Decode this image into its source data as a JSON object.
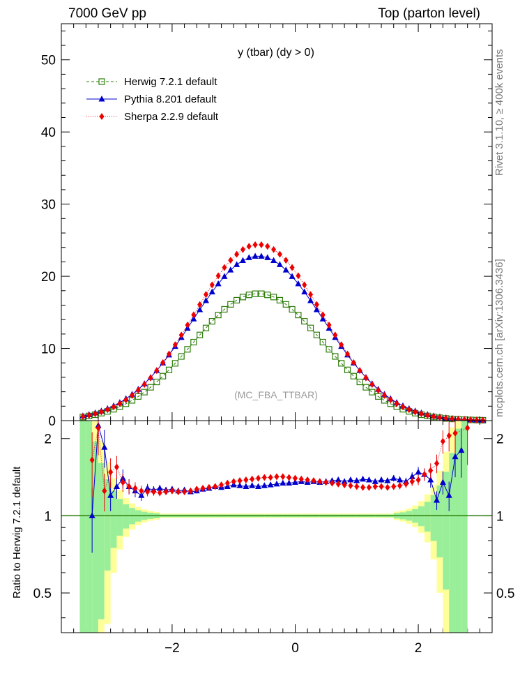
{
  "header": {
    "left": "7000 GeV pp",
    "right": "Top (parton level)"
  },
  "side_labels": {
    "rivet": "Rivet 3.1.10, ≥ 400k events",
    "source": "mcplots.cern.ch [arXiv:1306.3436]"
  },
  "chart_data": {
    "type": "line",
    "title": "y (tbar) (dy > 0)",
    "watermark": "(MC_FBA_TTBAR)",
    "xlabel": "",
    "ylabel": "",
    "xlim": [
      -3.8,
      3.2
    ],
    "ylim": [
      0,
      55
    ],
    "x_ticks": [
      -2,
      0,
      2
    ],
    "x_tick_labels": [
      "−2",
      "0",
      "2"
    ],
    "y_ticks": [
      0,
      10,
      20,
      30,
      40,
      50
    ],
    "y_tick_labels": [
      "0",
      "10",
      "20",
      "30",
      "40",
      "50"
    ],
    "legend_position": "top-left",
    "series": [
      {
        "name": "Herwig 7.2.1 default",
        "color": "#2e7d0a",
        "marker": "open-square",
        "line": "dashed",
        "amp": 17.6,
        "sigma": 1.07,
        "mu": -0.6
      },
      {
        "name": "Pythia 8.201 default",
        "color": "#0000cc",
        "marker": "triangle",
        "line": "solid",
        "amp": 22.8,
        "sigma": 1.07,
        "mu": -0.6
      },
      {
        "name": "Sherpa 2.2.9 default",
        "color": "#ee0000",
        "marker": "diamond",
        "line": "dotted",
        "amp": 24.4,
        "sigma": 1.04,
        "mu": -0.6
      }
    ],
    "ratio": {
      "ylabel": "Ratio to Herwig 7.2.1 default",
      "ylim": [
        0.35,
        2.35
      ],
      "y_ticks": [
        0.5,
        1,
        2
      ],
      "y_tick_labels": [
        "0.5",
        "1",
        "2"
      ],
      "reference": 1,
      "pythia": [
        [
          -3.3,
          1.0
        ],
        [
          -3.2,
          2.25
        ],
        [
          -3.1,
          1.85
        ],
        [
          -3.0,
          1.2
        ],
        [
          -2.9,
          1.3
        ],
        [
          -2.8,
          1.4
        ],
        [
          -2.7,
          1.3
        ],
        [
          -2.6,
          1.25
        ],
        [
          -2.5,
          1.2
        ],
        [
          -2.4,
          1.28
        ],
        [
          -2.3,
          1.26
        ],
        [
          -2.2,
          1.28
        ],
        [
          -2.1,
          1.26
        ],
        [
          -2.0,
          1.27
        ],
        [
          -1.9,
          1.25
        ],
        [
          -1.8,
          1.26
        ],
        [
          -1.7,
          1.24
        ],
        [
          -1.6,
          1.25
        ],
        [
          -1.5,
          1.27
        ],
        [
          -1.4,
          1.28
        ],
        [
          -1.3,
          1.3
        ],
        [
          -1.2,
          1.29
        ],
        [
          -1.1,
          1.3
        ],
        [
          -1.0,
          1.32
        ],
        [
          -0.9,
          1.31
        ],
        [
          -0.8,
          1.3
        ],
        [
          -0.7,
          1.31
        ],
        [
          -0.6,
          1.3
        ],
        [
          -0.5,
          1.31
        ],
        [
          -0.4,
          1.32
        ],
        [
          -0.3,
          1.33
        ],
        [
          -0.2,
          1.34
        ],
        [
          -0.1,
          1.34
        ],
        [
          0.0,
          1.35
        ],
        [
          0.1,
          1.36
        ],
        [
          0.2,
          1.35
        ],
        [
          0.3,
          1.36
        ],
        [
          0.4,
          1.35
        ],
        [
          0.5,
          1.36
        ],
        [
          0.6,
          1.37
        ],
        [
          0.7,
          1.38
        ],
        [
          0.8,
          1.36
        ],
        [
          0.9,
          1.38
        ],
        [
          1.0,
          1.37
        ],
        [
          1.1,
          1.39
        ],
        [
          1.2,
          1.38
        ],
        [
          1.3,
          1.36
        ],
        [
          1.4,
          1.38
        ],
        [
          1.5,
          1.37
        ],
        [
          1.6,
          1.4
        ],
        [
          1.7,
          1.38
        ],
        [
          1.8,
          1.36
        ],
        [
          1.9,
          1.42
        ],
        [
          2.0,
          1.48
        ],
        [
          2.1,
          1.45
        ],
        [
          2.2,
          1.38
        ],
        [
          2.3,
          1.15
        ],
        [
          2.4,
          1.35
        ],
        [
          2.5,
          1.2
        ],
        [
          2.6,
          1.7
        ],
        [
          2.7,
          1.8
        ]
      ],
      "sherpa": [
        [
          -3.3,
          1.65
        ],
        [
          -3.2,
          2.2
        ],
        [
          -3.1,
          1.25
        ],
        [
          -3.0,
          1.48
        ],
        [
          -2.9,
          1.55
        ],
        [
          -2.8,
          1.35
        ],
        [
          -2.7,
          1.3
        ],
        [
          -2.6,
          1.28
        ],
        [
          -2.5,
          1.25
        ],
        [
          -2.4,
          1.24
        ],
        [
          -2.3,
          1.24
        ],
        [
          -2.2,
          1.23
        ],
        [
          -2.1,
          1.24
        ],
        [
          -2.0,
          1.25
        ],
        [
          -1.9,
          1.24
        ],
        [
          -1.8,
          1.24
        ],
        [
          -1.7,
          1.25
        ],
        [
          -1.6,
          1.27
        ],
        [
          -1.5,
          1.28
        ],
        [
          -1.4,
          1.29
        ],
        [
          -1.3,
          1.3
        ],
        [
          -1.2,
          1.32
        ],
        [
          -1.1,
          1.34
        ],
        [
          -1.0,
          1.36
        ],
        [
          -0.9,
          1.37
        ],
        [
          -0.8,
          1.38
        ],
        [
          -0.7,
          1.39
        ],
        [
          -0.6,
          1.4
        ],
        [
          -0.5,
          1.41
        ],
        [
          -0.4,
          1.41
        ],
        [
          -0.3,
          1.42
        ],
        [
          -0.2,
          1.42
        ],
        [
          -0.1,
          1.41
        ],
        [
          0.0,
          1.4
        ],
        [
          0.1,
          1.39
        ],
        [
          0.2,
          1.38
        ],
        [
          0.3,
          1.37
        ],
        [
          0.4,
          1.36
        ],
        [
          0.5,
          1.35
        ],
        [
          0.6,
          1.34
        ],
        [
          0.7,
          1.33
        ],
        [
          0.8,
          1.32
        ],
        [
          0.9,
          1.31
        ],
        [
          1.0,
          1.3
        ],
        [
          1.1,
          1.29
        ],
        [
          1.2,
          1.29
        ],
        [
          1.3,
          1.3
        ],
        [
          1.4,
          1.3
        ],
        [
          1.5,
          1.29
        ],
        [
          1.6,
          1.3
        ],
        [
          1.7,
          1.31
        ],
        [
          1.8,
          1.33
        ],
        [
          1.9,
          1.36
        ],
        [
          2.0,
          1.38
        ],
        [
          2.1,
          1.45
        ],
        [
          2.2,
          1.5
        ],
        [
          2.3,
          1.6
        ],
        [
          2.4,
          1.95
        ],
        [
          2.5,
          2.05
        ],
        [
          2.6,
          2.1
        ],
        [
          2.8,
          2.2
        ]
      ]
    }
  }
}
